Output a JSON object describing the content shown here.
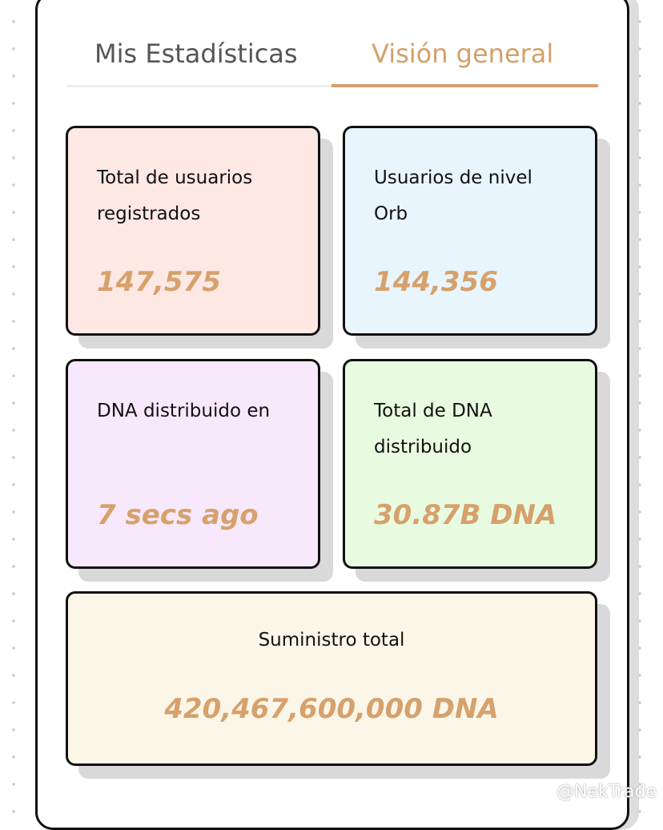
{
  "tabs": [
    "Mis Estadísticas",
    "Visión general"
  ],
  "cards": [
    {
      "label": "Total de usuarios registrados",
      "value": "147,575"
    },
    {
      "label": "Usuarios de nivel Orb",
      "value": "144,356"
    },
    {
      "label": "DNA distribuido en",
      "value": "7 secs ago"
    },
    {
      "label": "Total de DNA distribuido",
      "value": "30.87B DNA"
    },
    {
      "label": "Suministro total",
      "value": "420,467,600,000 DNA"
    }
  ],
  "watermark": "@NekTrade"
}
